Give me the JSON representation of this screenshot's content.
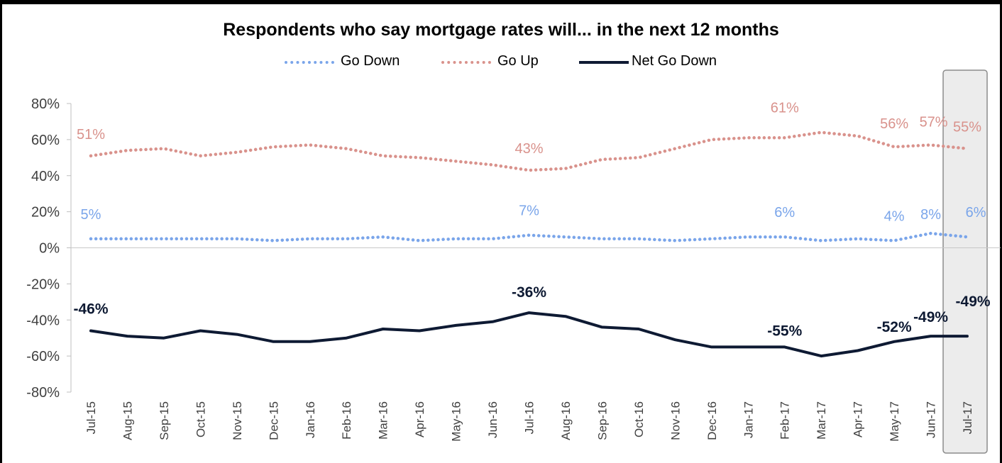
{
  "chart_data": {
    "type": "line",
    "title": "Respondents who say mortgage rates will... in the next 12 months",
    "categories": [
      "Jul-15",
      "Aug-15",
      "Sep-15",
      "Oct-15",
      "Nov-15",
      "Dec-15",
      "Jan-16",
      "Feb-16",
      "Mar-16",
      "Apr-16",
      "May-16",
      "Jun-16",
      "Jul-16",
      "Aug-16",
      "Sep-16",
      "Oct-16",
      "Nov-16",
      "Dec-16",
      "Jan-17",
      "Feb-17",
      "Mar-17",
      "Apr-17",
      "May-17",
      "Jun-17",
      "Jul-17"
    ],
    "series": [
      {
        "name": "Go Down",
        "style": "dotted",
        "color": "#7aa5ea",
        "values": [
          5,
          5,
          5,
          5,
          5,
          4,
          5,
          5,
          6,
          4,
          5,
          5,
          7,
          6,
          5,
          5,
          4,
          5,
          6,
          6,
          4,
          5,
          4,
          8,
          6
        ],
        "labels": [
          {
            "index": 0,
            "text": "5%"
          },
          {
            "index": 12,
            "text": "7%"
          },
          {
            "index": 19,
            "text": "6%"
          },
          {
            "index": 22,
            "text": "4%"
          },
          {
            "index": 23,
            "text": "8%"
          },
          {
            "index": 24,
            "text": "6%"
          }
        ]
      },
      {
        "name": "Go Up",
        "style": "dotted",
        "color": "#d9928c",
        "values": [
          51,
          54,
          55,
          51,
          53,
          56,
          57,
          55,
          51,
          50,
          48,
          46,
          43,
          44,
          49,
          50,
          55,
          60,
          61,
          61,
          64,
          62,
          56,
          57,
          55
        ],
        "labels": [
          {
            "index": 0,
            "text": "51%"
          },
          {
            "index": 12,
            "text": "43%"
          },
          {
            "index": 19,
            "text": "61%"
          },
          {
            "index": 22,
            "text": "56%"
          },
          {
            "index": 23,
            "text": "57%"
          },
          {
            "index": 24,
            "text": "55%"
          }
        ]
      },
      {
        "name": "Net Go Down",
        "style": "solid",
        "color": "#0e1a33",
        "values": [
          -46,
          -49,
          -50,
          -46,
          -48,
          -52,
          -52,
          -50,
          -45,
          -46,
          -43,
          -41,
          -36,
          -38,
          -44,
          -45,
          -51,
          -55,
          -55,
          -55,
          -60,
          -57,
          -52,
          -49,
          -49
        ],
        "labels": [
          {
            "index": 0,
            "text": "-46%"
          },
          {
            "index": 12,
            "text": "-36%"
          },
          {
            "index": 19,
            "text": "-55%"
          },
          {
            "index": 22,
            "text": "-52%"
          },
          {
            "index": 23,
            "text": "-49%"
          },
          {
            "index": 24,
            "text": "-49%"
          }
        ]
      }
    ],
    "ylim": [
      -80,
      80
    ],
    "yticks": [
      "-80%",
      "-60%",
      "-40%",
      "-20%",
      "0%",
      "20%",
      "40%",
      "60%",
      "80%"
    ],
    "xlabel": "",
    "ylabel": "",
    "grid": false,
    "legend_position": "top",
    "highlight_category": "Jul-17"
  }
}
